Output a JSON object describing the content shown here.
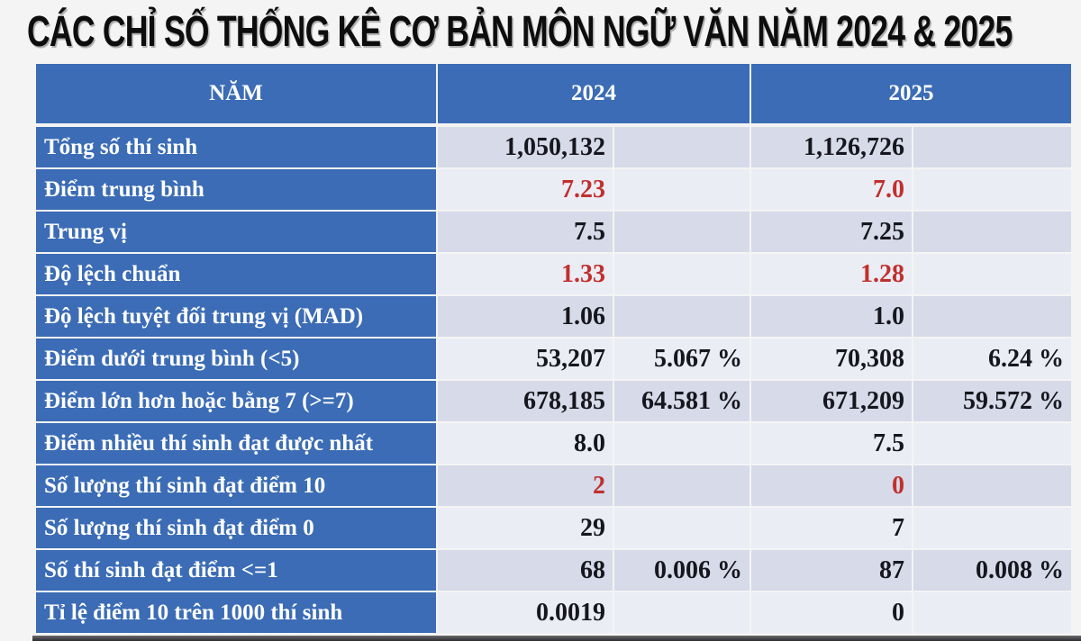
{
  "title": "CÁC CHỈ SỐ THỐNG KÊ CƠ BẢN MÔN NGỮ VĂN NĂM 2024 & 2025",
  "table": {
    "header": {
      "year_label": "NĂM",
      "col_2024": "2024",
      "col_2025": "2025"
    },
    "rows": [
      {
        "label": "Tổng số thí sinh",
        "v2024": "1,050,132",
        "p2024": "",
        "v2025": "1,126,726",
        "p2025": ""
      },
      {
        "label": "Điểm trung bình",
        "v2024": "7.23",
        "p2024": "",
        "v2025": "7.0",
        "p2025": ""
      },
      {
        "label": "Trung vị",
        "v2024": "7.5",
        "p2024": "",
        "v2025": "7.25",
        "p2025": ""
      },
      {
        "label": "Độ lệch chuẩn",
        "v2024": "1.33",
        "p2024": "",
        "v2025": "1.28",
        "p2025": ""
      },
      {
        "label": "Độ lệch tuyệt đối trung vị (MAD)",
        "v2024": "1.06",
        "p2024": "",
        "v2025": "1.0",
        "p2025": ""
      },
      {
        "label": "Điểm dưới trung bình (<5)",
        "v2024": "53,207",
        "p2024": "5.067 %",
        "v2025": "70,308",
        "p2025": "6.24 %"
      },
      {
        "label": "Điểm lớn hơn hoặc bằng 7 (>=7)",
        "v2024": "678,185",
        "p2024": "64.581 %",
        "v2025": "671,209",
        "p2025": "59.572 %"
      },
      {
        "label": "Điểm nhiều thí sinh đạt được nhất",
        "v2024": "8.0",
        "p2024": "",
        "v2025": "7.5",
        "p2025": ""
      },
      {
        "label": "Số lượng thí sinh đạt điểm 10",
        "v2024": "2",
        "p2024": "",
        "v2025": "0",
        "p2025": ""
      },
      {
        "label": "Số lượng thí sinh đạt điểm 0",
        "v2024": "29",
        "p2024": "",
        "v2025": "7",
        "p2025": ""
      },
      {
        "label": "Số thí sinh đạt điểm <=1",
        "v2024": "68",
        "p2024": "0.006 %",
        "v2025": "87",
        "p2025": "0.008 %"
      },
      {
        "label": "Tỉ lệ điểm 10 trên 1000 thí sinh",
        "v2024": "0.0019",
        "p2024": "",
        "v2025": "0",
        "p2025": ""
      }
    ]
  },
  "colors": {
    "header_blue": "#3B6CB5",
    "row_dark": "#D7DAE8",
    "row_light": "#EBEDF5",
    "highlight_red": "#C0302D",
    "value_text": "#16161E",
    "page_background": "#F4F4F4"
  },
  "chart_data": {
    "type": "table",
    "title": "CÁC CHỈ SỐ THỐNG KÊ CƠ BẢN MÔN NGỮ VĂN NĂM 2024 & 2025",
    "columns": [
      "NĂM",
      "2024",
      "2024 %",
      "2025",
      "2025 %"
    ],
    "rows": [
      [
        "Tổng số thí sinh",
        "1,050,132",
        "",
        "1,126,726",
        ""
      ],
      [
        "Điểm trung bình",
        "7.23",
        "",
        "7.0",
        ""
      ],
      [
        "Trung vị",
        "7.5",
        "",
        "7.25",
        ""
      ],
      [
        "Độ lệch chuẩn",
        "1.33",
        "",
        "1.28",
        ""
      ],
      [
        "Độ lệch tuyệt đối trung vị (MAD)",
        "1.06",
        "",
        "1.0",
        ""
      ],
      [
        "Điểm dưới trung bình (<5)",
        "53,207",
        "5.067 %",
        "70,308",
        "6.24 %"
      ],
      [
        "Điểm lớn hơn hoặc bằng 7 (>=7)",
        "678,185",
        "64.581 %",
        "671,209",
        "59.572 %"
      ],
      [
        "Điểm nhiều thí sinh đạt được nhất",
        "8.0",
        "",
        "7.5",
        ""
      ],
      [
        "Số lượng thí sinh đạt điểm 10",
        "2",
        "",
        "0",
        ""
      ],
      [
        "Số lượng thí sinh đạt điểm 0",
        "29",
        "",
        "7",
        ""
      ],
      [
        "Số thí sinh đạt điểm <=1",
        "68",
        "0.006 %",
        "87",
        "0.008 %"
      ],
      [
        "Tỉ lệ điểm 10 trên 1000 thí sinh",
        "0.0019",
        "",
        "0",
        ""
      ]
    ],
    "highlighted_red_values": [
      "7.23",
      "7.0",
      "1.33",
      "1.28",
      "2",
      "0"
    ]
  }
}
